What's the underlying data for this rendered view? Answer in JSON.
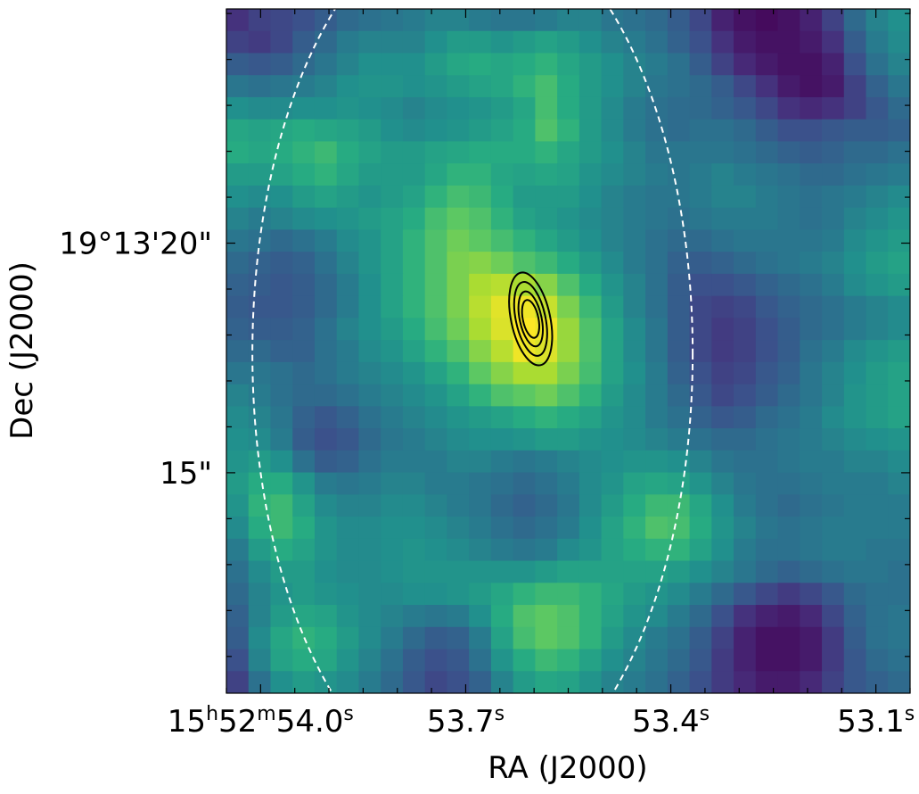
{
  "chart_data": {
    "type": "heatmap",
    "title": "",
    "xlabel": "RA (J2000)",
    "ylabel": "Dec (J2000)",
    "x_ticks": [
      {
        "ra_s": 54.0,
        "parts": [
          [
            "15",
            ""
          ],
          [
            "h",
            "sup"
          ],
          [
            "52",
            ""
          ],
          [
            "m",
            "sup"
          ],
          [
            "54.0",
            ""
          ],
          [
            "s",
            "sup"
          ]
        ]
      },
      {
        "ra_s": 53.7,
        "parts": [
          [
            "53.7",
            ""
          ],
          [
            "s",
            "sup"
          ]
        ]
      },
      {
        "ra_s": 53.4,
        "parts": [
          [
            "53.4",
            ""
          ],
          [
            "s",
            "sup"
          ]
        ]
      },
      {
        "ra_s": 53.1,
        "parts": [
          [
            "53.1",
            ""
          ],
          [
            "s",
            "sup"
          ]
        ]
      }
    ],
    "y_ticks": [
      {
        "dec_arcsec": 20,
        "label": "19°13'20\""
      },
      {
        "dec_arcsec": 15,
        "label": "15\""
      }
    ],
    "colormap": "viridis",
    "grid": false,
    "pixel_grid": {
      "cols": 31,
      "rows": 31
    },
    "grid_ra_range_s": [
      54.05,
      53.05
    ],
    "grid_dec_range_arcsec": [
      25.1,
      10.2
    ],
    "intensity": [
      [
        0.15,
        0.2,
        0.22,
        0.25,
        0.3,
        0.35,
        0.38,
        0.4,
        0.42,
        0.45,
        0.45,
        0.42,
        0.4,
        0.4,
        0.42,
        0.45,
        0.45,
        0.4,
        0.38,
        0.35,
        0.3,
        0.22,
        0.1,
        0.05,
        0.03,
        0.05,
        0.1,
        0.2,
        0.35,
        0.45,
        0.5
      ],
      [
        0.2,
        0.18,
        0.22,
        0.3,
        0.35,
        0.42,
        0.45,
        0.45,
        0.45,
        0.5,
        0.55,
        0.55,
        0.52,
        0.55,
        0.58,
        0.55,
        0.5,
        0.45,
        0.42,
        0.38,
        0.32,
        0.25,
        0.15,
        0.08,
        0.05,
        0.05,
        0.08,
        0.15,
        0.3,
        0.42,
        0.48
      ],
      [
        0.3,
        0.28,
        0.3,
        0.35,
        0.4,
        0.45,
        0.5,
        0.5,
        0.5,
        0.55,
        0.6,
        0.62,
        0.6,
        0.62,
        0.65,
        0.6,
        0.55,
        0.5,
        0.45,
        0.42,
        0.38,
        0.3,
        0.2,
        0.12,
        0.08,
        0.05,
        0.05,
        0.1,
        0.25,
        0.38,
        0.45
      ],
      [
        0.4,
        0.38,
        0.4,
        0.42,
        0.45,
        0.5,
        0.52,
        0.52,
        0.5,
        0.52,
        0.55,
        0.58,
        0.6,
        0.65,
        0.7,
        0.62,
        0.55,
        0.5,
        0.45,
        0.4,
        0.38,
        0.35,
        0.3,
        0.22,
        0.15,
        0.08,
        0.05,
        0.08,
        0.2,
        0.32,
        0.4
      ],
      [
        0.5,
        0.48,
        0.48,
        0.5,
        0.5,
        0.52,
        0.5,
        0.48,
        0.45,
        0.48,
        0.5,
        0.52,
        0.55,
        0.6,
        0.7,
        0.62,
        0.55,
        0.48,
        0.42,
        0.38,
        0.36,
        0.35,
        0.32,
        0.28,
        0.22,
        0.15,
        0.12,
        0.15,
        0.2,
        0.28,
        0.35
      ],
      [
        0.6,
        0.58,
        0.6,
        0.62,
        0.6,
        0.58,
        0.55,
        0.5,
        0.48,
        0.5,
        0.52,
        0.55,
        0.58,
        0.62,
        0.72,
        0.65,
        0.55,
        0.48,
        0.42,
        0.38,
        0.36,
        0.38,
        0.38,
        0.35,
        0.3,
        0.25,
        0.25,
        0.28,
        0.3,
        0.3,
        0.32
      ],
      [
        0.62,
        0.6,
        0.62,
        0.65,
        0.68,
        0.62,
        0.58,
        0.55,
        0.55,
        0.58,
        0.6,
        0.62,
        0.62,
        0.62,
        0.65,
        0.6,
        0.55,
        0.5,
        0.45,
        0.4,
        0.4,
        0.4,
        0.4,
        0.38,
        0.35,
        0.32,
        0.3,
        0.32,
        0.35,
        0.35,
        0.38
      ],
      [
        0.55,
        0.55,
        0.58,
        0.62,
        0.65,
        0.6,
        0.55,
        0.55,
        0.55,
        0.6,
        0.65,
        0.65,
        0.6,
        0.58,
        0.6,
        0.58,
        0.52,
        0.48,
        0.45,
        0.42,
        0.4,
        0.42,
        0.45,
        0.42,
        0.4,
        0.38,
        0.35,
        0.35,
        0.38,
        0.4,
        0.42
      ],
      [
        0.5,
        0.48,
        0.5,
        0.55,
        0.58,
        0.55,
        0.52,
        0.55,
        0.58,
        0.65,
        0.7,
        0.68,
        0.62,
        0.55,
        0.55,
        0.55,
        0.5,
        0.45,
        0.42,
        0.4,
        0.4,
        0.42,
        0.45,
        0.45,
        0.42,
        0.4,
        0.38,
        0.4,
        0.42,
        0.45,
        0.48
      ],
      [
        0.45,
        0.42,
        0.45,
        0.48,
        0.5,
        0.52,
        0.55,
        0.58,
        0.62,
        0.7,
        0.75,
        0.72,
        0.65,
        0.58,
        0.55,
        0.52,
        0.48,
        0.45,
        0.42,
        0.4,
        0.38,
        0.4,
        0.42,
        0.42,
        0.42,
        0.4,
        0.38,
        0.4,
        0.45,
        0.48,
        0.52
      ],
      [
        0.4,
        0.38,
        0.35,
        0.38,
        0.42,
        0.48,
        0.52,
        0.58,
        0.65,
        0.72,
        0.78,
        0.75,
        0.7,
        0.65,
        0.6,
        0.55,
        0.5,
        0.45,
        0.42,
        0.38,
        0.35,
        0.35,
        0.38,
        0.4,
        0.4,
        0.4,
        0.4,
        0.42,
        0.48,
        0.52,
        0.55
      ],
      [
        0.35,
        0.32,
        0.3,
        0.32,
        0.38,
        0.45,
        0.52,
        0.58,
        0.65,
        0.72,
        0.8,
        0.82,
        0.78,
        0.72,
        0.68,
        0.62,
        0.55,
        0.48,
        0.42,
        0.38,
        0.32,
        0.3,
        0.32,
        0.35,
        0.38,
        0.4,
        0.42,
        0.45,
        0.5,
        0.55,
        0.58
      ],
      [
        0.32,
        0.3,
        0.28,
        0.3,
        0.35,
        0.42,
        0.5,
        0.58,
        0.65,
        0.72,
        0.8,
        0.88,
        0.9,
        0.88,
        0.82,
        0.72,
        0.62,
        0.52,
        0.45,
        0.38,
        0.3,
        0.25,
        0.25,
        0.28,
        0.32,
        0.35,
        0.38,
        0.42,
        0.48,
        0.52,
        0.55
      ],
      [
        0.3,
        0.28,
        0.28,
        0.3,
        0.35,
        0.42,
        0.5,
        0.58,
        0.65,
        0.72,
        0.8,
        0.9,
        0.96,
        0.98,
        0.92,
        0.8,
        0.68,
        0.55,
        0.45,
        0.38,
        0.3,
        0.22,
        0.2,
        0.22,
        0.28,
        0.32,
        0.35,
        0.38,
        0.42,
        0.45,
        0.48
      ],
      [
        0.32,
        0.3,
        0.3,
        0.32,
        0.38,
        0.45,
        0.5,
        0.55,
        0.62,
        0.7,
        0.78,
        0.88,
        0.95,
        1.0,
        0.98,
        0.85,
        0.72,
        0.58,
        0.48,
        0.4,
        0.3,
        0.22,
        0.18,
        0.2,
        0.25,
        0.3,
        0.35,
        0.38,
        0.42,
        0.45,
        0.48
      ],
      [
        0.35,
        0.35,
        0.32,
        0.32,
        0.38,
        0.42,
        0.48,
        0.52,
        0.58,
        0.65,
        0.72,
        0.82,
        0.9,
        0.98,
        0.95,
        0.85,
        0.72,
        0.58,
        0.48,
        0.4,
        0.3,
        0.22,
        0.18,
        0.2,
        0.25,
        0.3,
        0.38,
        0.42,
        0.48,
        0.52,
        0.55
      ],
      [
        0.4,
        0.4,
        0.38,
        0.35,
        0.38,
        0.42,
        0.45,
        0.48,
        0.52,
        0.58,
        0.65,
        0.75,
        0.82,
        0.88,
        0.88,
        0.8,
        0.7,
        0.58,
        0.5,
        0.42,
        0.32,
        0.25,
        0.2,
        0.22,
        0.28,
        0.32,
        0.4,
        0.45,
        0.5,
        0.55,
        0.58
      ],
      [
        0.45,
        0.42,
        0.38,
        0.35,
        0.35,
        0.38,
        0.42,
        0.45,
        0.48,
        0.52,
        0.58,
        0.65,
        0.72,
        0.75,
        0.78,
        0.72,
        0.65,
        0.55,
        0.48,
        0.42,
        0.35,
        0.28,
        0.22,
        0.25,
        0.3,
        0.35,
        0.4,
        0.45,
        0.52,
        0.55,
        0.58
      ],
      [
        0.48,
        0.45,
        0.4,
        0.32,
        0.28,
        0.32,
        0.38,
        0.42,
        0.45,
        0.48,
        0.52,
        0.55,
        0.58,
        0.62,
        0.65,
        0.62,
        0.58,
        0.52,
        0.48,
        0.42,
        0.38,
        0.32,
        0.28,
        0.3,
        0.35,
        0.38,
        0.42,
        0.48,
        0.52,
        0.55,
        0.58
      ],
      [
        0.5,
        0.48,
        0.42,
        0.3,
        0.25,
        0.28,
        0.35,
        0.4,
        0.42,
        0.45,
        0.48,
        0.5,
        0.5,
        0.52,
        0.55,
        0.55,
        0.52,
        0.5,
        0.48,
        0.45,
        0.42,
        0.38,
        0.35,
        0.35,
        0.38,
        0.4,
        0.42,
        0.45,
        0.48,
        0.5,
        0.52
      ],
      [
        0.52,
        0.55,
        0.5,
        0.38,
        0.3,
        0.32,
        0.38,
        0.42,
        0.42,
        0.42,
        0.45,
        0.45,
        0.42,
        0.4,
        0.42,
        0.45,
        0.48,
        0.5,
        0.52,
        0.52,
        0.5,
        0.45,
        0.4,
        0.38,
        0.38,
        0.4,
        0.42,
        0.42,
        0.45,
        0.45,
        0.48
      ],
      [
        0.55,
        0.62,
        0.62,
        0.52,
        0.42,
        0.4,
        0.42,
        0.45,
        0.45,
        0.42,
        0.42,
        0.4,
        0.38,
        0.35,
        0.38,
        0.42,
        0.48,
        0.52,
        0.58,
        0.6,
        0.58,
        0.52,
        0.45,
        0.4,
        0.38,
        0.38,
        0.4,
        0.42,
        0.42,
        0.42,
        0.45
      ],
      [
        0.52,
        0.65,
        0.68,
        0.58,
        0.48,
        0.45,
        0.45,
        0.48,
        0.48,
        0.45,
        0.42,
        0.4,
        0.35,
        0.32,
        0.35,
        0.4,
        0.48,
        0.55,
        0.62,
        0.68,
        0.68,
        0.6,
        0.5,
        0.42,
        0.38,
        0.35,
        0.38,
        0.4,
        0.42,
        0.42,
        0.42
      ],
      [
        0.48,
        0.62,
        0.68,
        0.62,
        0.52,
        0.48,
        0.48,
        0.5,
        0.5,
        0.48,
        0.45,
        0.42,
        0.38,
        0.35,
        0.38,
        0.42,
        0.5,
        0.58,
        0.65,
        0.72,
        0.7,
        0.62,
        0.52,
        0.45,
        0.4,
        0.38,
        0.4,
        0.42,
        0.42,
        0.42,
        0.42
      ],
      [
        0.42,
        0.55,
        0.62,
        0.58,
        0.52,
        0.48,
        0.48,
        0.5,
        0.52,
        0.5,
        0.48,
        0.45,
        0.42,
        0.4,
        0.42,
        0.48,
        0.52,
        0.58,
        0.62,
        0.65,
        0.65,
        0.58,
        0.5,
        0.42,
        0.38,
        0.38,
        0.4,
        0.42,
        0.42,
        0.4,
        0.4
      ],
      [
        0.38,
        0.48,
        0.55,
        0.55,
        0.5,
        0.48,
        0.48,
        0.5,
        0.52,
        0.52,
        0.52,
        0.52,
        0.52,
        0.52,
        0.55,
        0.58,
        0.58,
        0.58,
        0.58,
        0.58,
        0.55,
        0.5,
        0.45,
        0.4,
        0.35,
        0.32,
        0.35,
        0.38,
        0.4,
        0.4,
        0.38
      ],
      [
        0.35,
        0.45,
        0.52,
        0.55,
        0.52,
        0.5,
        0.48,
        0.48,
        0.5,
        0.5,
        0.52,
        0.55,
        0.6,
        0.65,
        0.68,
        0.68,
        0.65,
        0.6,
        0.55,
        0.52,
        0.48,
        0.42,
        0.35,
        0.28,
        0.22,
        0.18,
        0.22,
        0.28,
        0.35,
        0.38,
        0.38
      ],
      [
        0.32,
        0.45,
        0.55,
        0.6,
        0.58,
        0.52,
        0.48,
        0.45,
        0.42,
        0.4,
        0.42,
        0.5,
        0.62,
        0.72,
        0.75,
        0.72,
        0.65,
        0.58,
        0.52,
        0.48,
        0.42,
        0.35,
        0.25,
        0.15,
        0.1,
        0.08,
        0.12,
        0.22,
        0.32,
        0.38,
        0.4
      ],
      [
        0.3,
        0.48,
        0.6,
        0.65,
        0.62,
        0.55,
        0.48,
        0.42,
        0.35,
        0.3,
        0.32,
        0.42,
        0.58,
        0.7,
        0.75,
        0.72,
        0.65,
        0.55,
        0.48,
        0.42,
        0.38,
        0.3,
        0.2,
        0.1,
        0.05,
        0.05,
        0.08,
        0.18,
        0.3,
        0.38,
        0.4
      ],
      [
        0.25,
        0.45,
        0.58,
        0.62,
        0.6,
        0.52,
        0.45,
        0.38,
        0.3,
        0.25,
        0.28,
        0.38,
        0.52,
        0.62,
        0.68,
        0.65,
        0.58,
        0.5,
        0.45,
        0.4,
        0.35,
        0.28,
        0.18,
        0.1,
        0.05,
        0.05,
        0.08,
        0.18,
        0.28,
        0.35,
        0.38
      ],
      [
        0.2,
        0.38,
        0.5,
        0.55,
        0.52,
        0.48,
        0.42,
        0.35,
        0.28,
        0.22,
        0.25,
        0.32,
        0.45,
        0.55,
        0.6,
        0.58,
        0.52,
        0.45,
        0.42,
        0.38,
        0.32,
        0.25,
        0.18,
        0.12,
        0.08,
        0.08,
        0.12,
        0.2,
        0.28,
        0.32,
        0.35
      ]
    ],
    "contours": [
      {
        "ra_center_s": 53.605,
        "dec_center_arcsec": 18.35,
        "ra_half_width_s": 0.0286,
        "dec_half_height_arcsec": 1.03,
        "rotation_deg": -12
      },
      {
        "ra_center_s": 53.605,
        "dec_center_arcsec": 18.35,
        "ra_half_width_s": 0.0217,
        "dec_half_height_arcsec": 0.82,
        "rotation_deg": -12
      },
      {
        "ra_center_s": 53.605,
        "dec_center_arcsec": 18.35,
        "ra_half_width_s": 0.016,
        "dec_half_height_arcsec": 0.61,
        "rotation_deg": -12
      },
      {
        "ra_center_s": 53.605,
        "dec_center_arcsec": 18.35,
        "ra_half_width_s": 0.0114,
        "dec_half_height_arcsec": 0.42,
        "rotation_deg": -12
      }
    ],
    "beam_circle": {
      "ra_center_s": 53.69,
      "dec_center_arcsec": 17.6,
      "ra_half_width_s": 0.322,
      "dec_half_height_arcsec": 9.6,
      "style": "dashed",
      "color": "#ffffff"
    },
    "contour_color": "#000000"
  }
}
